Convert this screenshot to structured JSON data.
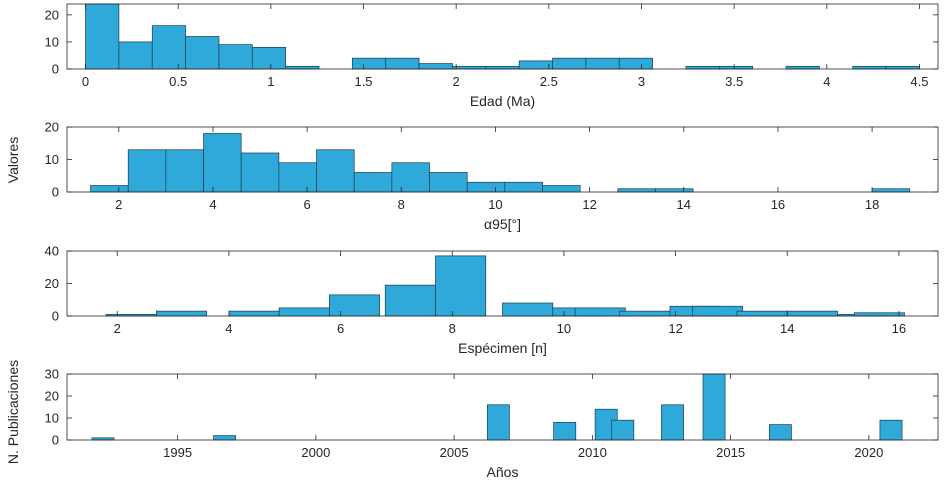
{
  "figure": {
    "ylabel_shared_upper": "Valores",
    "ylabel_shared_lower": "N. Publicaciones",
    "bar_color": "#2fa9d9",
    "edge_color": "#1c3b4f"
  },
  "chart_data": [
    {
      "type": "bar",
      "title": "",
      "xlabel": "Edad (Ma)",
      "ylabel": "",
      "xlim": [
        -0.1,
        4.6
      ],
      "ylim": [
        0,
        24
      ],
      "xticks": [
        0,
        0.5,
        1,
        1.5,
        2,
        2.5,
        3,
        3.5,
        4,
        4.5
      ],
      "xtick_labels": [
        "0",
        "0.5",
        "1",
        "1.5",
        "2",
        "2.5",
        "3",
        "3.5",
        "4",
        "4.5"
      ],
      "yticks": [
        0,
        10,
        20
      ],
      "ytick_labels": [
        "0",
        "10",
        "20"
      ],
      "bin_width": 0.18,
      "bins": [
        {
          "x": 0.0,
          "value": 24
        },
        {
          "x": 0.18,
          "value": 10
        },
        {
          "x": 0.36,
          "value": 16
        },
        {
          "x": 0.54,
          "value": 12
        },
        {
          "x": 0.72,
          "value": 9
        },
        {
          "x": 0.9,
          "value": 8
        },
        {
          "x": 1.08,
          "value": 1
        },
        {
          "x": 1.44,
          "value": 4
        },
        {
          "x": 1.62,
          "value": 4
        },
        {
          "x": 1.8,
          "value": 2
        },
        {
          "x": 1.98,
          "value": 1
        },
        {
          "x": 2.16,
          "value": 1
        },
        {
          "x": 2.34,
          "value": 3
        },
        {
          "x": 2.52,
          "value": 4
        },
        {
          "x": 2.7,
          "value": 4
        },
        {
          "x": 2.88,
          "value": 4
        },
        {
          "x": 3.24,
          "value": 1
        },
        {
          "x": 3.42,
          "value": 1
        },
        {
          "x": 3.78,
          "value": 1
        },
        {
          "x": 4.14,
          "value": 1
        },
        {
          "x": 4.32,
          "value": 1
        }
      ]
    },
    {
      "type": "bar",
      "title": "",
      "xlabel": "α95[°]",
      "ylabel": "",
      "xlim": [
        0.9,
        19.4
      ],
      "ylim": [
        0,
        20
      ],
      "xticks": [
        2,
        4,
        6,
        8,
        10,
        12,
        14,
        16,
        18
      ],
      "xtick_labels": [
        "2",
        "4",
        "6",
        "8",
        "10",
        "12",
        "14",
        "16",
        "18"
      ],
      "yticks": [
        0,
        10,
        20
      ],
      "ytick_labels": [
        "0",
        "10",
        "20"
      ],
      "bin_width": 0.8,
      "bins": [
        {
          "x": 1.4,
          "value": 2
        },
        {
          "x": 2.2,
          "value": 13
        },
        {
          "x": 3.0,
          "value": 13
        },
        {
          "x": 3.8,
          "value": 18
        },
        {
          "x": 4.6,
          "value": 12
        },
        {
          "x": 5.4,
          "value": 9
        },
        {
          "x": 6.2,
          "value": 13
        },
        {
          "x": 7.0,
          "value": 6
        },
        {
          "x": 7.8,
          "value": 9
        },
        {
          "x": 8.6,
          "value": 6
        },
        {
          "x": 9.4,
          "value": 3
        },
        {
          "x": 10.2,
          "value": 3
        },
        {
          "x": 11.0,
          "value": 2
        },
        {
          "x": 12.6,
          "value": 1
        },
        {
          "x": 13.4,
          "value": 1
        },
        {
          "x": 18.0,
          "value": 1
        }
      ]
    },
    {
      "type": "bar",
      "title": "",
      "xlabel": "Espécimen [n]",
      "ylabel": "",
      "xlim": [
        1.1,
        16.7
      ],
      "ylim": [
        0,
        40
      ],
      "xticks": [
        2,
        4,
        6,
        8,
        10,
        12,
        14,
        16
      ],
      "xtick_labels": [
        "2",
        "4",
        "6",
        "8",
        "10",
        "12",
        "14",
        "16"
      ],
      "yticks": [
        0,
        20,
        40
      ],
      "ytick_labels": [
        "0",
        "20",
        "40"
      ],
      "bin_width": 0.9,
      "bins": [
        {
          "x": 1.8,
          "value": 1
        },
        {
          "x": 2.7,
          "value": 3
        },
        {
          "x": 4.0,
          "value": 3
        },
        {
          "x": 4.9,
          "value": 5
        },
        {
          "x": 5.8,
          "value": 13
        },
        {
          "x": 6.8,
          "value": 19
        },
        {
          "x": 7.7,
          "value": 37
        },
        {
          "x": 8.9,
          "value": 8
        },
        {
          "x": 9.8,
          "value": 5
        },
        {
          "x": 10.2,
          "value": 5
        },
        {
          "x": 11.0,
          "value": 3
        },
        {
          "x": 11.9,
          "value": 6
        },
        {
          "x": 12.3,
          "value": 6
        },
        {
          "x": 13.1,
          "value": 3
        },
        {
          "x": 14.0,
          "value": 3
        },
        {
          "x": 14.9,
          "value": 1
        },
        {
          "x": 15.2,
          "value": 2
        }
      ]
    },
    {
      "type": "bar",
      "title": "",
      "xlabel": "Años",
      "ylabel": "",
      "xlim": [
        1991,
        2022.5
      ],
      "ylim": [
        0,
        30
      ],
      "xticks": [
        1995,
        2000,
        2005,
        2010,
        2015,
        2020
      ],
      "xtick_labels": [
        "1995",
        "2000",
        "2005",
        "2010",
        "2015",
        "2020"
      ],
      "yticks": [
        0,
        10,
        20,
        30
      ],
      "ytick_labels": [
        "0",
        "10",
        "20",
        "30"
      ],
      "bin_width": 0.8,
      "bins": [
        {
          "x": 1991.9,
          "value": 1
        },
        {
          "x": 1996.3,
          "value": 2
        },
        {
          "x": 2006.2,
          "value": 16
        },
        {
          "x": 2008.6,
          "value": 8
        },
        {
          "x": 2010.1,
          "value": 14
        },
        {
          "x": 2010.7,
          "value": 9
        },
        {
          "x": 2012.5,
          "value": 16
        },
        {
          "x": 2014.0,
          "value": 30
        },
        {
          "x": 2016.4,
          "value": 7
        },
        {
          "x": 2020.4,
          "value": 9
        }
      ]
    }
  ]
}
